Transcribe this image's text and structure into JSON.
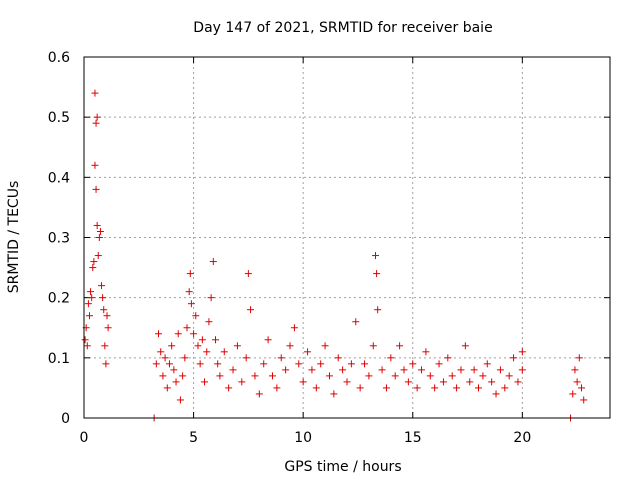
{
  "chart_data": {
    "type": "scatter",
    "title": "Day 147 of 2021, SRMTID for receiver baie",
    "xlabel": "GPS time / hours",
    "ylabel": "SRMTID / TECUs",
    "xlim": [
      0,
      24
    ],
    "ylim": [
      0,
      0.6
    ],
    "x_ticks": [
      0,
      5,
      10,
      15,
      20
    ],
    "y_ticks": [
      0,
      0.1,
      0.2,
      0.3,
      0.4,
      0.5,
      0.6
    ],
    "x_tick_labels": [
      "0",
      "5",
      "10",
      "15",
      "20"
    ],
    "y_tick_labels": [
      "0",
      "0.1",
      "0.2",
      "0.3",
      "0.4",
      "0.5",
      "0.6"
    ],
    "grid": true,
    "marker": "+",
    "marker_color": "#e00000",
    "series": [
      {
        "name": "SRMTID",
        "points": [
          [
            0.05,
            0.13
          ],
          [
            0.1,
            0.15
          ],
          [
            0.15,
            0.12
          ],
          [
            0.2,
            0.19
          ],
          [
            0.25,
            0.17
          ],
          [
            0.3,
            0.21
          ],
          [
            0.35,
            0.2
          ],
          [
            0.4,
            0.25
          ],
          [
            0.45,
            0.26
          ],
          [
            0.5,
            0.42
          ],
          [
            0.5,
            0.54
          ],
          [
            0.55,
            0.49
          ],
          [
            0.55,
            0.38
          ],
          [
            0.6,
            0.5
          ],
          [
            0.6,
            0.32
          ],
          [
            0.65,
            0.27
          ],
          [
            0.7,
            0.3
          ],
          [
            0.75,
            0.31
          ],
          [
            0.8,
            0.22
          ],
          [
            0.85,
            0.2
          ],
          [
            0.9,
            0.18
          ],
          [
            0.95,
            0.12
          ],
          [
            1.0,
            0.09
          ],
          [
            1.05,
            0.17
          ],
          [
            1.1,
            0.15
          ],
          [
            3.2,
            0.0
          ],
          [
            3.3,
            0.09
          ],
          [
            3.4,
            0.14
          ],
          [
            3.5,
            0.11
          ],
          [
            3.6,
            0.07
          ],
          [
            3.7,
            0.1
          ],
          [
            3.8,
            0.05
          ],
          [
            3.9,
            0.09
          ],
          [
            4.0,
            0.12
          ],
          [
            4.1,
            0.08
          ],
          [
            4.2,
            0.06
          ],
          [
            4.3,
            0.14
          ],
          [
            4.4,
            0.03
          ],
          [
            4.5,
            0.07
          ],
          [
            4.6,
            0.1
          ],
          [
            4.7,
            0.15
          ],
          [
            4.8,
            0.21
          ],
          [
            4.85,
            0.24
          ],
          [
            4.9,
            0.19
          ],
          [
            5.0,
            0.14
          ],
          [
            5.1,
            0.17
          ],
          [
            5.2,
            0.12
          ],
          [
            5.3,
            0.09
          ],
          [
            5.4,
            0.13
          ],
          [
            5.5,
            0.06
          ],
          [
            5.6,
            0.11
          ],
          [
            5.7,
            0.16
          ],
          [
            5.8,
            0.2
          ],
          [
            5.9,
            0.26
          ],
          [
            6.0,
            0.13
          ],
          [
            6.1,
            0.09
          ],
          [
            6.2,
            0.07
          ],
          [
            6.4,
            0.11
          ],
          [
            6.6,
            0.05
          ],
          [
            6.8,
            0.08
          ],
          [
            7.0,
            0.12
          ],
          [
            7.2,
            0.06
          ],
          [
            7.4,
            0.1
          ],
          [
            7.5,
            0.24
          ],
          [
            7.6,
            0.18
          ],
          [
            7.8,
            0.07
          ],
          [
            8.0,
            0.04
          ],
          [
            8.2,
            0.09
          ],
          [
            8.4,
            0.13
          ],
          [
            8.6,
            0.07
          ],
          [
            8.8,
            0.05
          ],
          [
            9.0,
            0.1
          ],
          [
            9.2,
            0.08
          ],
          [
            9.4,
            0.12
          ],
          [
            9.6,
            0.15
          ],
          [
            9.8,
            0.09
          ],
          [
            10.0,
            0.06
          ],
          [
            10.2,
            0.11
          ],
          [
            10.4,
            0.08
          ],
          [
            10.6,
            0.05
          ],
          [
            10.8,
            0.09
          ],
          [
            11.0,
            0.12
          ],
          [
            11.2,
            0.07
          ],
          [
            11.4,
            0.04
          ],
          [
            11.6,
            0.1
          ],
          [
            11.8,
            0.08
          ],
          [
            12.0,
            0.06
          ],
          [
            12.2,
            0.09
          ],
          [
            12.4,
            0.16
          ],
          [
            12.6,
            0.05
          ],
          [
            12.8,
            0.09
          ],
          [
            13.0,
            0.07
          ],
          [
            13.2,
            0.12
          ],
          [
            13.3,
            0.27
          ],
          [
            13.35,
            0.24
          ],
          [
            13.4,
            0.18
          ],
          [
            13.6,
            0.08
          ],
          [
            13.8,
            0.05
          ],
          [
            14.0,
            0.1
          ],
          [
            14.2,
            0.07
          ],
          [
            14.4,
            0.12
          ],
          [
            14.6,
            0.08
          ],
          [
            14.8,
            0.06
          ],
          [
            15.0,
            0.09
          ],
          [
            15.2,
            0.05
          ],
          [
            15.4,
            0.08
          ],
          [
            15.6,
            0.11
          ],
          [
            15.8,
            0.07
          ],
          [
            16.0,
            0.05
          ],
          [
            16.2,
            0.09
          ],
          [
            16.4,
            0.06
          ],
          [
            16.6,
            0.1
          ],
          [
            16.8,
            0.07
          ],
          [
            17.0,
            0.05
          ],
          [
            17.2,
            0.08
          ],
          [
            17.4,
            0.12
          ],
          [
            17.6,
            0.06
          ],
          [
            17.8,
            0.08
          ],
          [
            18.0,
            0.05
          ],
          [
            18.2,
            0.07
          ],
          [
            18.4,
            0.09
          ],
          [
            18.6,
            0.06
          ],
          [
            18.8,
            0.04
          ],
          [
            19.0,
            0.08
          ],
          [
            19.2,
            0.05
          ],
          [
            19.4,
            0.07
          ],
          [
            19.6,
            0.1
          ],
          [
            19.8,
            0.06
          ],
          [
            20.0,
            0.08
          ],
          [
            20.0,
            0.11
          ],
          [
            22.2,
            0.0
          ],
          [
            22.3,
            0.04
          ],
          [
            22.4,
            0.08
          ],
          [
            22.5,
            0.06
          ],
          [
            22.6,
            0.1
          ],
          [
            22.7,
            0.05
          ],
          [
            22.8,
            0.03
          ]
        ]
      }
    ]
  }
}
